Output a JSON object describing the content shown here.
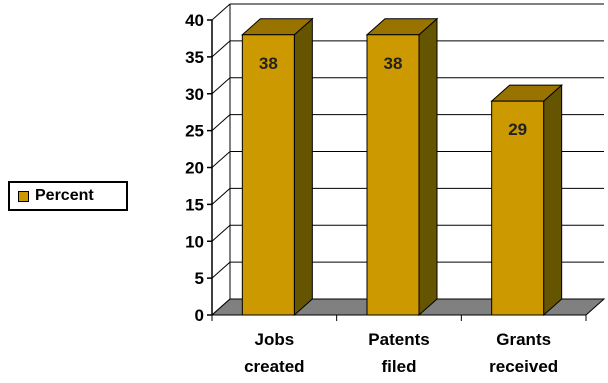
{
  "chart_data": {
    "type": "bar",
    "categories": [
      [
        "Jobs",
        "created"
      ],
      [
        "Patents",
        "filed"
      ],
      [
        "Grants",
        "received"
      ]
    ],
    "series": [
      {
        "name": "Percent",
        "values": [
          38,
          38,
          29
        ]
      }
    ],
    "ylim": [
      0,
      40
    ],
    "yticks": [
      "0",
      "5",
      "10",
      "15",
      "20",
      "25",
      "30",
      "35",
      "40"
    ],
    "grid": true,
    "legend": "left",
    "data_labels": [
      "38",
      "38",
      "29"
    ],
    "colors": {
      "bar_front": "#CC9900",
      "bar_side": "#665500",
      "bar_top": "#997300",
      "floor": "#808080",
      "grid": "#000000"
    }
  }
}
